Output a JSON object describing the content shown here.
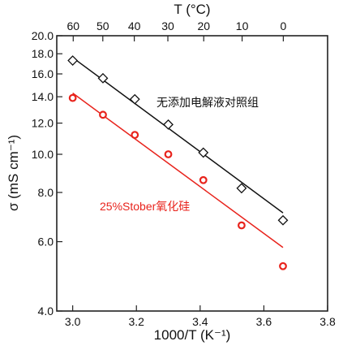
{
  "chart_data": {
    "type": "scatter",
    "title": "",
    "xlabel": "1000/T (K⁻¹)",
    "ylabel": "σ (mS cm⁻¹)",
    "x2label": "T (°C)",
    "xlim": [
      2.95,
      3.8
    ],
    "ylim": [
      4.0,
      20.0
    ],
    "yscale": "log",
    "grid": false,
    "legend": "none",
    "x_ticks": [
      "3.0",
      "3.2",
      "3.4",
      "3.6",
      "3.8"
    ],
    "x_tick_values": [
      3.0,
      3.2,
      3.4,
      3.6,
      3.8
    ],
    "y_ticks": [
      "4.0",
      "6.0",
      "8.0",
      "10.0",
      "12.0",
      "14.0",
      "16.0",
      "18.0",
      "20.0"
    ],
    "y_tick_values": [
      4.0,
      6.0,
      8.0,
      10.0,
      12.0,
      14.0,
      16.0,
      18.0,
      20.0
    ],
    "top_ticks": [
      "60",
      "50",
      "40",
      "30",
      "20",
      "10",
      "0"
    ],
    "top_tick_celsius": [
      60,
      50,
      40,
      30,
      20,
      10,
      0
    ],
    "series": [
      {
        "name": "无添加电解液对照组",
        "marker": "diamond",
        "color": "#111111",
        "x": [
          3.0,
          3.095,
          3.195,
          3.3,
          3.41,
          3.53,
          3.66
        ],
        "y": [
          17.3,
          15.6,
          13.8,
          11.9,
          10.1,
          8.2,
          6.8
        ],
        "fit": {
          "x": [
            3.0,
            3.66
          ],
          "y": [
            17.6,
            7.1
          ]
        }
      },
      {
        "name": "25%Stober氧化硅",
        "marker": "circle",
        "color": "#e8231c",
        "x": [
          3.0,
          3.095,
          3.195,
          3.3,
          3.41,
          3.53,
          3.66
        ],
        "y": [
          13.9,
          12.6,
          11.2,
          10.0,
          8.6,
          6.6,
          5.2
        ],
        "fit": {
          "x": [
            3.0,
            3.66
          ],
          "y": [
            14.3,
            5.8
          ]
        }
      }
    ]
  }
}
